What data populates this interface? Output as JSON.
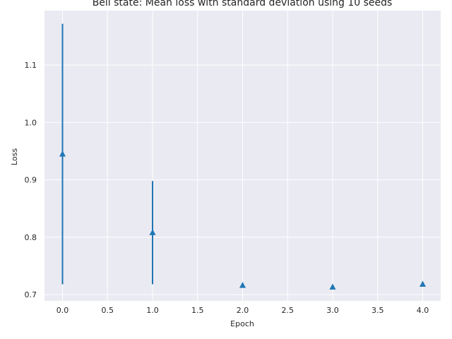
{
  "chart_data": {
    "type": "scatter",
    "title": "Bell state: Mean loss with standard deviation using 10 seeds",
    "xlabel": "Epoch",
    "ylabel": "Loss",
    "xlim": [
      -0.2,
      4.2
    ],
    "ylim": [
      0.689,
      1.195
    ],
    "x_ticks": [
      0.0,
      0.5,
      1.0,
      1.5,
      2.0,
      2.5,
      3.0,
      3.5,
      4.0
    ],
    "x_tick_labels": [
      "0.0",
      "0.5",
      "1.0",
      "1.5",
      "2.0",
      "2.5",
      "3.0",
      "3.5",
      "4.0"
    ],
    "y_ticks": [
      0.7,
      0.8,
      0.9,
      1.0,
      1.1
    ],
    "y_tick_labels": [
      "0.7",
      "0.8",
      "0.9",
      "1.0",
      "1.1"
    ],
    "grid": true,
    "marker": "triangle-up",
    "series": [
      {
        "x": [
          0,
          1,
          2,
          3,
          4
        ],
        "y": [
          0.945,
          0.808,
          0.716,
          0.713,
          0.718
        ],
        "yerr_low": [
          0.718,
          0.718,
          0.716,
          0.713,
          0.718
        ],
        "yerr_high": [
          1.172,
          0.898,
          0.716,
          0.713,
          0.718
        ],
        "color": "#1f77b4"
      }
    ],
    "colors": {
      "plot_background": "#eaeaf2",
      "grid": "#ffffff",
      "series": "#1f77b4"
    }
  }
}
